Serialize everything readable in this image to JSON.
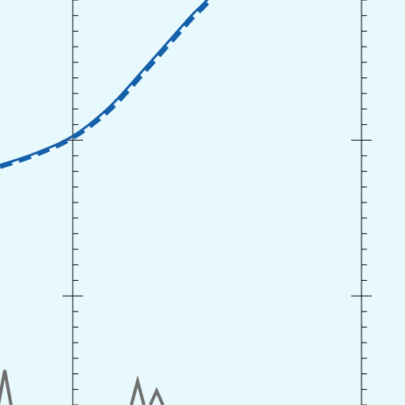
{
  "chart_data": {
    "type": "line",
    "title": "",
    "xlabel": "",
    "ylabel": "",
    "xlim": [
      -1.0,
      4.5
    ],
    "ylim": [
      -1.7,
      0.9
    ],
    "grid": false,
    "major_y_ticks": [
      -1,
      0
    ],
    "minor_y_step": 0.1,
    "series": [
      {
        "style": "solid",
        "color": "#1560aa",
        "x": [
          -1.0,
          -0.5,
          0.0,
          0.5,
          1.0,
          1.3,
          1.6,
          1.75,
          1.85
        ],
        "y": [
          -0.16,
          -0.08,
          0.03,
          0.22,
          0.48,
          0.64,
          0.8,
          0.87,
          0.92
        ]
      },
      {
        "style": "dashed",
        "color": "#1560aa",
        "x": [
          -1.0,
          -0.5,
          0.0,
          0.5,
          1.0,
          1.3,
          1.6,
          1.75,
          1.85
        ],
        "y": [
          -0.17,
          -0.09,
          0.02,
          0.2,
          0.46,
          0.62,
          0.78,
          0.85,
          0.9
        ]
      }
    ]
  }
}
